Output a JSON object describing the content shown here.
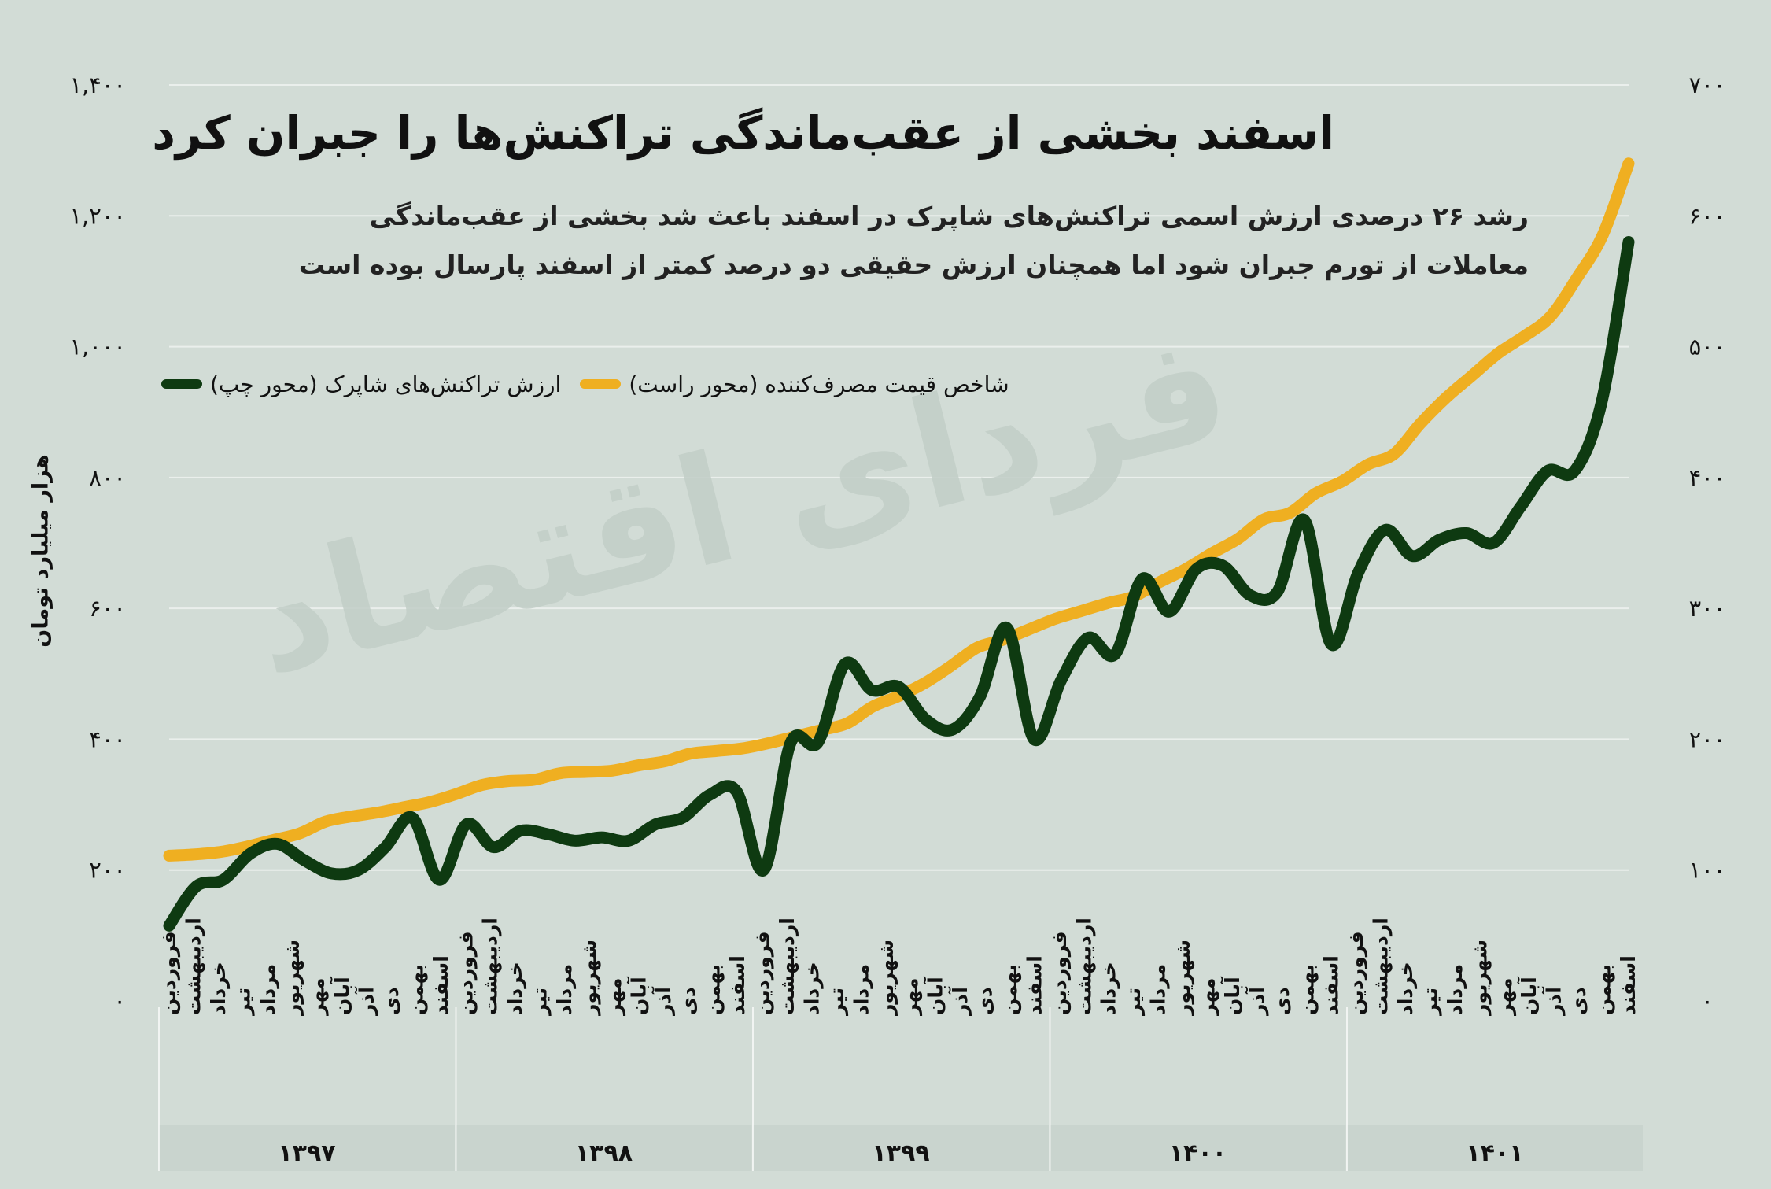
{
  "title": "اسفند بخشی از عقب‌ماندگی تراکنش‌ها را جبران کرد",
  "subtitle": "رشد ۲۶ درصدی ارزش اسمی تراکنش‌های شاپرک در اسفند باعث شد بخشی از عقب‌ماندگی معاملات از تورم جبران شود اما همچنان ارزش حقیقی دو درصد کمتر از اسفند پارسال بوده است",
  "watermark": "فردای اقتصاد",
  "colors": {
    "background": "#d2dcd6",
    "shaparak": "#0e3a11",
    "cpi": "#efaf21",
    "grid": "#ffffff"
  },
  "chart_data": {
    "type": "line",
    "ylabel": "هزار میلیارد تومان",
    "ylim_left": [
      0,
      1400
    ],
    "ylim_right": [
      0,
      700
    ],
    "left_ticks": [
      "۰",
      "۲۰۰",
      "۴۰۰",
      "۶۰۰",
      "۸۰۰",
      "۱,۰۰۰",
      "۱,۲۰۰",
      "۱,۴۰۰"
    ],
    "right_ticks": [
      "۰",
      "۱۰۰",
      "۲۰۰",
      "۳۰۰",
      "۴۰۰",
      "۵۰۰",
      "۶۰۰",
      "۷۰۰"
    ],
    "months": [
      "فروردین",
      "اردیبهشت",
      "خرداد",
      "تیر",
      "مرداد",
      "شهریور",
      "مهر",
      "آبان",
      "آذر",
      "دی",
      "بهمن",
      "اسفند"
    ],
    "years": [
      "۱۳۹۷",
      "۱۳۹۸",
      "۱۳۹۹",
      "۱۴۰۰",
      "۱۴۰۱"
    ],
    "series": [
      {
        "name": "ارزش تراکنش‌های شاپرک (محور چپ)",
        "axis": "left",
        "values": [
          115,
          175,
          185,
          225,
          240,
          215,
          195,
          200,
          235,
          280,
          185,
          270,
          235,
          260,
          255,
          245,
          250,
          245,
          270,
          280,
          315,
          320,
          200,
          395,
          395,
          515,
          475,
          480,
          430,
          415,
          465,
          570,
          400,
          490,
          555,
          530,
          645,
          595,
          660,
          665,
          620,
          625,
          735,
          545,
          655,
          720,
          680,
          705,
          715,
          700,
          755,
          810,
          810,
          915,
          1160
        ]
      },
      {
        "name": "شاخص قیمت مصرف‌کننده (محور راست)",
        "axis": "right",
        "values": [
          111,
          112,
          114,
          118,
          123,
          128,
          137,
          141,
          144,
          148,
          152,
          158,
          165,
          168,
          169,
          174,
          175,
          176,
          180,
          183,
          189,
          191,
          193,
          197,
          202,
          207,
          212,
          225,
          233,
          243,
          256,
          270,
          276,
          284,
          292,
          298,
          304,
          309,
          320,
          330,
          342,
          353,
          368,
          373,
          388,
          397,
          410,
          418,
          441,
          461,
          478,
          495,
          508,
          523,
          552,
          585,
          640
        ]
      }
    ]
  }
}
